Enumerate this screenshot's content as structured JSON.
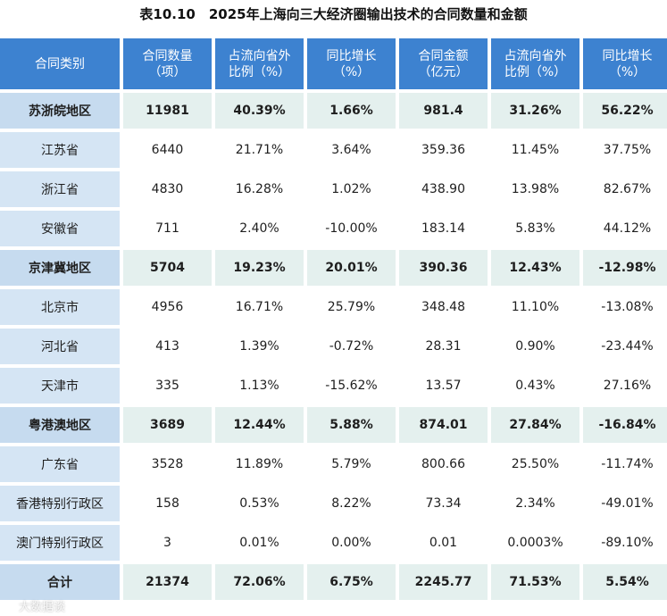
{
  "title": "表10.10　2025年上海向三大经济圈输出技术的合同数量和金额",
  "headers": [
    "合同类别",
    "合同数量\n（项）",
    "占流向省外\n比例（%）",
    "同比增长\n（%）",
    "合同金额\n（亿元）",
    "占流向省外\n比例（%）",
    "同比增长\n（%）"
  ],
  "rows": [
    {
      "type": "group",
      "cells": [
        "苏浙皖地区",
        "11981",
        "40.39%",
        "1.66%",
        "981.4",
        "31.26%",
        "56.22%"
      ]
    },
    {
      "type": "norm",
      "cells": [
        "江苏省",
        "6440",
        "21.71%",
        "3.64%",
        "359.36",
        "11.45%",
        "37.75%"
      ]
    },
    {
      "type": "norm",
      "cells": [
        "浙江省",
        "4830",
        "16.28%",
        "1.02%",
        "438.90",
        "13.98%",
        "82.67%"
      ]
    },
    {
      "type": "norm",
      "cells": [
        "安徽省",
        "711",
        "2.40%",
        "-10.00%",
        "183.14",
        "5.83%",
        "44.12%"
      ]
    },
    {
      "type": "group",
      "cells": [
        "京津冀地区",
        "5704",
        "19.23%",
        "20.01%",
        "390.36",
        "12.43%",
        "-12.98%"
      ]
    },
    {
      "type": "norm",
      "cells": [
        "北京市",
        "4956",
        "16.71%",
        "25.79%",
        "348.48",
        "11.10%",
        "-13.08%"
      ]
    },
    {
      "type": "norm",
      "cells": [
        "河北省",
        "413",
        "1.39%",
        "-0.72%",
        "28.31",
        "0.90%",
        "-23.44%"
      ]
    },
    {
      "type": "norm",
      "cells": [
        "天津市",
        "335",
        "1.13%",
        "-15.62%",
        "13.57",
        "0.43%",
        "27.16%"
      ]
    },
    {
      "type": "group",
      "cells": [
        "粤港澳地区",
        "3689",
        "12.44%",
        "5.88%",
        "874.01",
        "27.84%",
        "-16.84%"
      ]
    },
    {
      "type": "norm",
      "cells": [
        "广东省",
        "3528",
        "11.89%",
        "5.79%",
        "800.66",
        "25.50%",
        "-11.74%"
      ]
    },
    {
      "type": "norm",
      "cells": [
        "香港特别行政区",
        "158",
        "0.53%",
        "8.22%",
        "73.34",
        "2.34%",
        "-49.01%"
      ]
    },
    {
      "type": "norm",
      "cells": [
        "澳门特别行政区",
        "3",
        "0.01%",
        "0.00%",
        "0.01",
        "0.0003%",
        "-89.10%"
      ]
    },
    {
      "type": "total",
      "cells": [
        "合计",
        "21374",
        "72.06%",
        "6.75%",
        "2245.77",
        "71.53%",
        "5.54%"
      ]
    }
  ],
  "watermark": "大数据谈"
}
